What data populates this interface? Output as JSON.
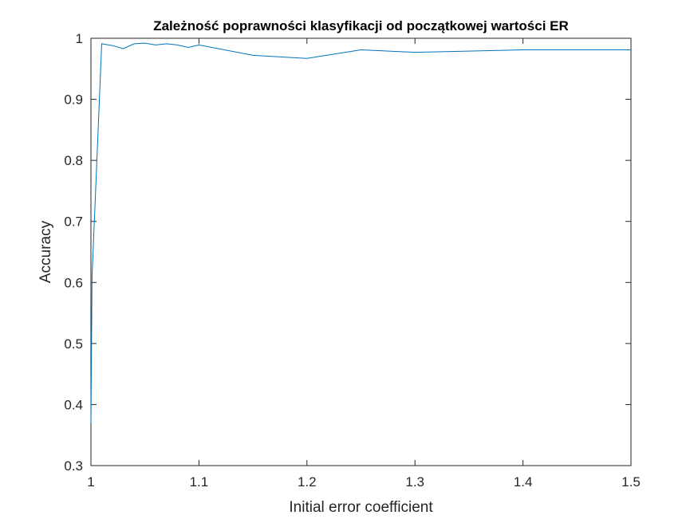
{
  "chart_data": {
    "type": "line",
    "title": "Zależność poprawności klasyfikacji od początkowej wartości ER",
    "xlabel": "Initial error coefficient",
    "ylabel": "Accuracy",
    "xlim": [
      1,
      1.5
    ],
    "ylim": [
      0.3,
      1
    ],
    "xticks": [
      {
        "value": 1,
        "label": "1"
      },
      {
        "value": 1.1,
        "label": "1.1"
      },
      {
        "value": 1.2,
        "label": "1.2"
      },
      {
        "value": 1.3,
        "label": "1.3"
      },
      {
        "value": 1.4,
        "label": "1.4"
      },
      {
        "value": 1.5,
        "label": "1.5"
      }
    ],
    "yticks": [
      {
        "value": 0.3,
        "label": "0.3"
      },
      {
        "value": 0.4,
        "label": "0.4"
      },
      {
        "value": 0.5,
        "label": "0.5"
      },
      {
        "value": 0.6,
        "label": "0.6"
      },
      {
        "value": 0.7,
        "label": "0.7"
      },
      {
        "value": 0.8,
        "label": "0.8"
      },
      {
        "value": 0.9,
        "label": "0.9"
      },
      {
        "value": 1,
        "label": "1"
      }
    ],
    "grid": false,
    "series": [
      {
        "color": "#0072bd",
        "x": [
          1.0,
          1.001,
          1.01,
          1.02,
          1.03,
          1.04,
          1.05,
          1.06,
          1.07,
          1.08,
          1.09,
          1.1,
          1.15,
          1.2,
          1.25,
          1.3,
          1.4,
          1.5
        ],
        "y": [
          0.37,
          0.61,
          0.991,
          0.988,
          0.983,
          0.991,
          0.992,
          0.989,
          0.991,
          0.989,
          0.985,
          0.989,
          0.972,
          0.967,
          0.981,
          0.977,
          0.981,
          0.981
        ]
      }
    ]
  }
}
